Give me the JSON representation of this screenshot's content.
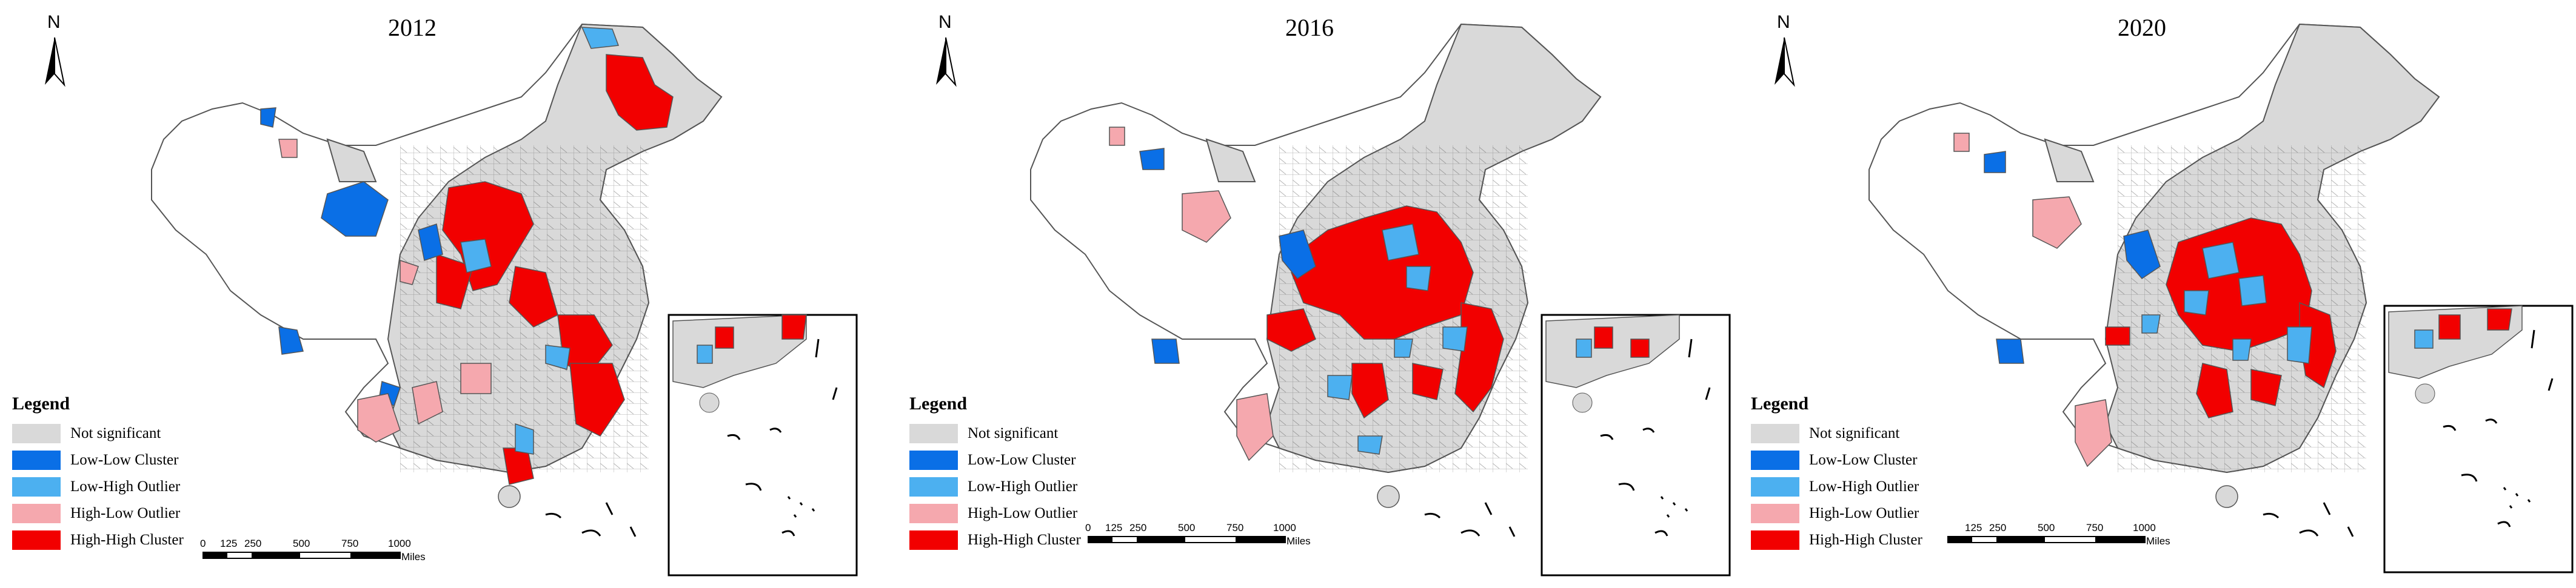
{
  "colors": {
    "not_significant": "#d9d9d9",
    "low_low": "#0a6fe6",
    "low_high": "#4cb0f0",
    "high_low": "#f5a8ae",
    "high_high": "#f20000"
  },
  "north_label": "N",
  "legend": {
    "title": "Legend",
    "items": [
      {
        "label": "Not significant",
        "color": "#d9d9d9"
      },
      {
        "label": "Low-Low Cluster",
        "color": "#0a6fe6"
      },
      {
        "label": "Low-High Outlier",
        "color": "#4cb0f0"
      },
      {
        "label": "High-Low Outlier",
        "color": "#f5a8ae"
      },
      {
        "label": "High-High Cluster",
        "color": "#f20000"
      }
    ]
  },
  "scale_bar": {
    "ticks": [
      "0",
      "125",
      "250",
      "500",
      "750",
      "1000"
    ],
    "unit": "Miles"
  },
  "maps": [
    {
      "year": "2012"
    },
    {
      "year": "2016"
    },
    {
      "year": "2020"
    }
  ]
}
